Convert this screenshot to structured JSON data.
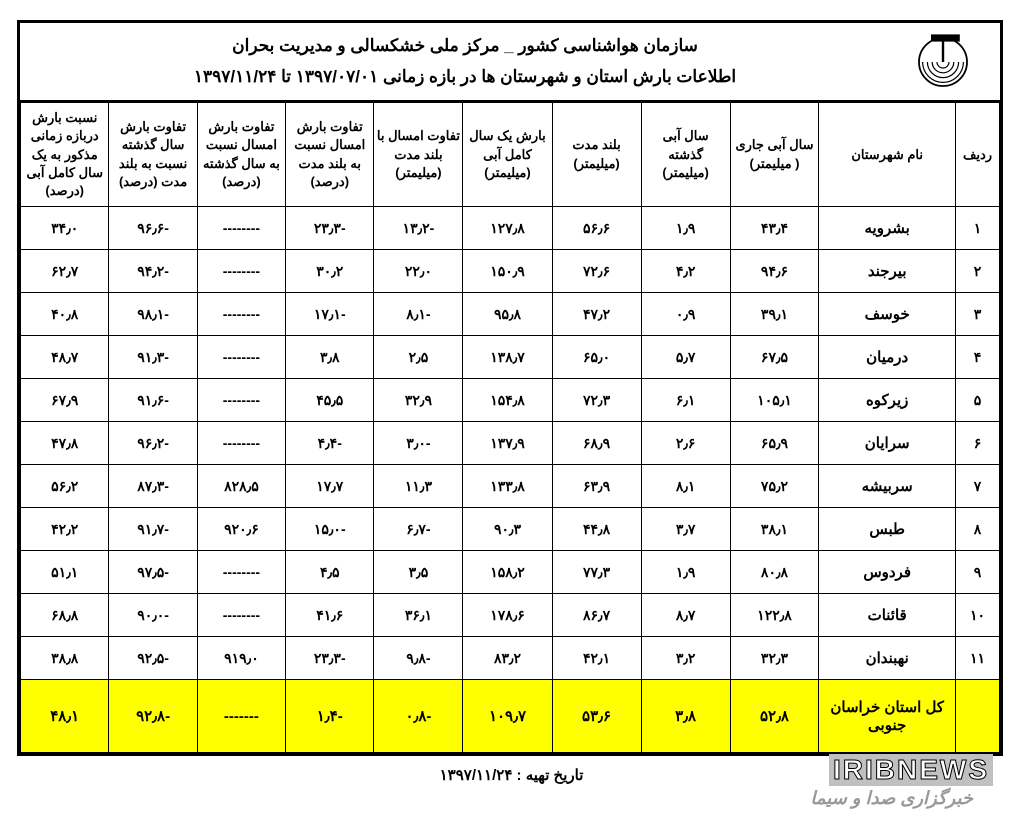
{
  "header": {
    "line1": "سازمان هواشناسی کشور _ مرکز ملی خشکسالی و مدیریت بحران",
    "line2": "اطلاعات بارش استان و شهرستان ها در بازه زمانی ۱۳۹۷/۰۷/۰۱ تا ۱۳۹۷/۱۱/۲۴"
  },
  "columns": [
    "ردیف",
    "نام شهرستان",
    "سال آبی جاری ( میلیمتر)",
    "سال آبی گذشته (میلیمتر)",
    "بلند مدت (میلیمتر)",
    "بارش یک سال کامل آبی (میلیمتر)",
    "تفاوت امسال با بلند مدت (میلیمتر)",
    "تفاوت بارش امسال نسبت به بلند مدت (درصد)",
    "تفاوت بارش امسال نسبت به سال گذشته (درصد)",
    "تفاوت بارش سال گذشته نسبت به بلند مدت (درصد)",
    "نسبت بارش دربازه زمانی مذکور به یک سال کامل آبی (درصد)"
  ],
  "rows": [
    {
      "idx": "۱",
      "name": "بشرویه",
      "c1": "۴۳٫۴",
      "c2": "۱٫۹",
      "c3": "۵۶٫۶",
      "c4": "۱۲۷٫۸",
      "c5": "-۱۳٫۲",
      "c6": "-۲۳٫۳",
      "c7": "--------",
      "c8": "-۹۶٫۶",
      "c9": "۳۴٫۰"
    },
    {
      "idx": "۲",
      "name": "بیرجند",
      "c1": "۹۴٫۶",
      "c2": "۴٫۲",
      "c3": "۷۲٫۶",
      "c4": "۱۵۰٫۹",
      "c5": "۲۲٫۰",
      "c6": "۳۰٫۲",
      "c7": "--------",
      "c8": "-۹۴٫۲",
      "c9": "۶۲٫۷"
    },
    {
      "idx": "۳",
      "name": "خوسف",
      "c1": "۳۹٫۱",
      "c2": "۰٫۹",
      "c3": "۴۷٫۲",
      "c4": "۹۵٫۸",
      "c5": "-۸٫۱",
      "c6": "-۱۷٫۱",
      "c7": "--------",
      "c8": "-۹۸٫۱",
      "c9": "۴۰٫۸"
    },
    {
      "idx": "۴",
      "name": "درمیان",
      "c1": "۶۷٫۵",
      "c2": "۵٫۷",
      "c3": "۶۵٫۰",
      "c4": "۱۳۸٫۷",
      "c5": "۲٫۵",
      "c6": "۳٫۸",
      "c7": "--------",
      "c8": "-۹۱٫۳",
      "c9": "۴۸٫۷"
    },
    {
      "idx": "۵",
      "name": "زیرکوه",
      "c1": "۱۰۵٫۱",
      "c2": "۶٫۱",
      "c3": "۷۲٫۳",
      "c4": "۱۵۴٫۸",
      "c5": "۳۲٫۹",
      "c6": "۴۵٫۵",
      "c7": "--------",
      "c8": "-۹۱٫۶",
      "c9": "۶۷٫۹"
    },
    {
      "idx": "۶",
      "name": "سرایان",
      "c1": "۶۵٫۹",
      "c2": "۲٫۶",
      "c3": "۶۸٫۹",
      "c4": "۱۳۷٫۹",
      "c5": "-۳٫۰",
      "c6": "-۴٫۴",
      "c7": "--------",
      "c8": "-۹۶٫۲",
      "c9": "۴۷٫۸"
    },
    {
      "idx": "۷",
      "name": "سربیشه",
      "c1": "۷۵٫۲",
      "c2": "۸٫۱",
      "c3": "۶۳٫۹",
      "c4": "۱۳۳٫۸",
      "c5": "۱۱٫۳",
      "c6": "۱۷٫۷",
      "c7": "۸۲۸٫۵",
      "c8": "-۸۷٫۳",
      "c9": "۵۶٫۲"
    },
    {
      "idx": "۸",
      "name": "طبس",
      "c1": "۳۸٫۱",
      "c2": "۳٫۷",
      "c3": "۴۴٫۸",
      "c4": "۹۰٫۳",
      "c5": "-۶٫۷",
      "c6": "-۱۵٫۰",
      "c7": "۹۲۰٫۶",
      "c8": "-۹۱٫۷",
      "c9": "۴۲٫۲"
    },
    {
      "idx": "۹",
      "name": "فردوس",
      "c1": "۸۰٫۸",
      "c2": "۱٫۹",
      "c3": "۷۷٫۳",
      "c4": "۱۵۸٫۲",
      "c5": "۳٫۵",
      "c6": "۴٫۵",
      "c7": "--------",
      "c8": "-۹۷٫۵",
      "c9": "۵۱٫۱"
    },
    {
      "idx": "۱۰",
      "name": "قائنات",
      "c1": "۱۲۲٫۸",
      "c2": "۸٫۷",
      "c3": "۸۶٫۷",
      "c4": "۱۷۸٫۶",
      "c5": "۳۶٫۱",
      "c6": "۴۱٫۶",
      "c7": "--------",
      "c8": "-۹۰٫۰",
      "c9": "۶۸٫۸"
    },
    {
      "idx": "۱۱",
      "name": "نهبندان",
      "c1": "۳۲٫۳",
      "c2": "۳٫۲",
      "c3": "۴۲٫۱",
      "c4": "۸۳٫۲",
      "c5": "-۹٫۸",
      "c6": "-۲۳٫۳",
      "c7": "۹۱۹٫۰",
      "c8": "-۹۲٫۵",
      "c9": "۳۸٫۸"
    }
  ],
  "total": {
    "idx": "",
    "name": "کل استان خراسان جنوبی",
    "c1": "۵۲٫۸",
    "c2": "۳٫۸",
    "c3": "۵۳٫۶",
    "c4": "۱۰۹٫۷",
    "c5": "-۰٫۸",
    "c6": "-۱٫۴",
    "c7": "-------",
    "c8": "-۹۲٫۸",
    "c9": "۴۸٫۱"
  },
  "footer": "تاریخ تهیه : ۱۳۹۷/۱۱/۲۴",
  "watermark": {
    "line1": "IRIBNEWS",
    "line2": "خبرگزاری صدا و سیما"
  },
  "style": {
    "highlight_bg": "#ffff00",
    "border_color": "#000000",
    "text_color": "#000000"
  }
}
